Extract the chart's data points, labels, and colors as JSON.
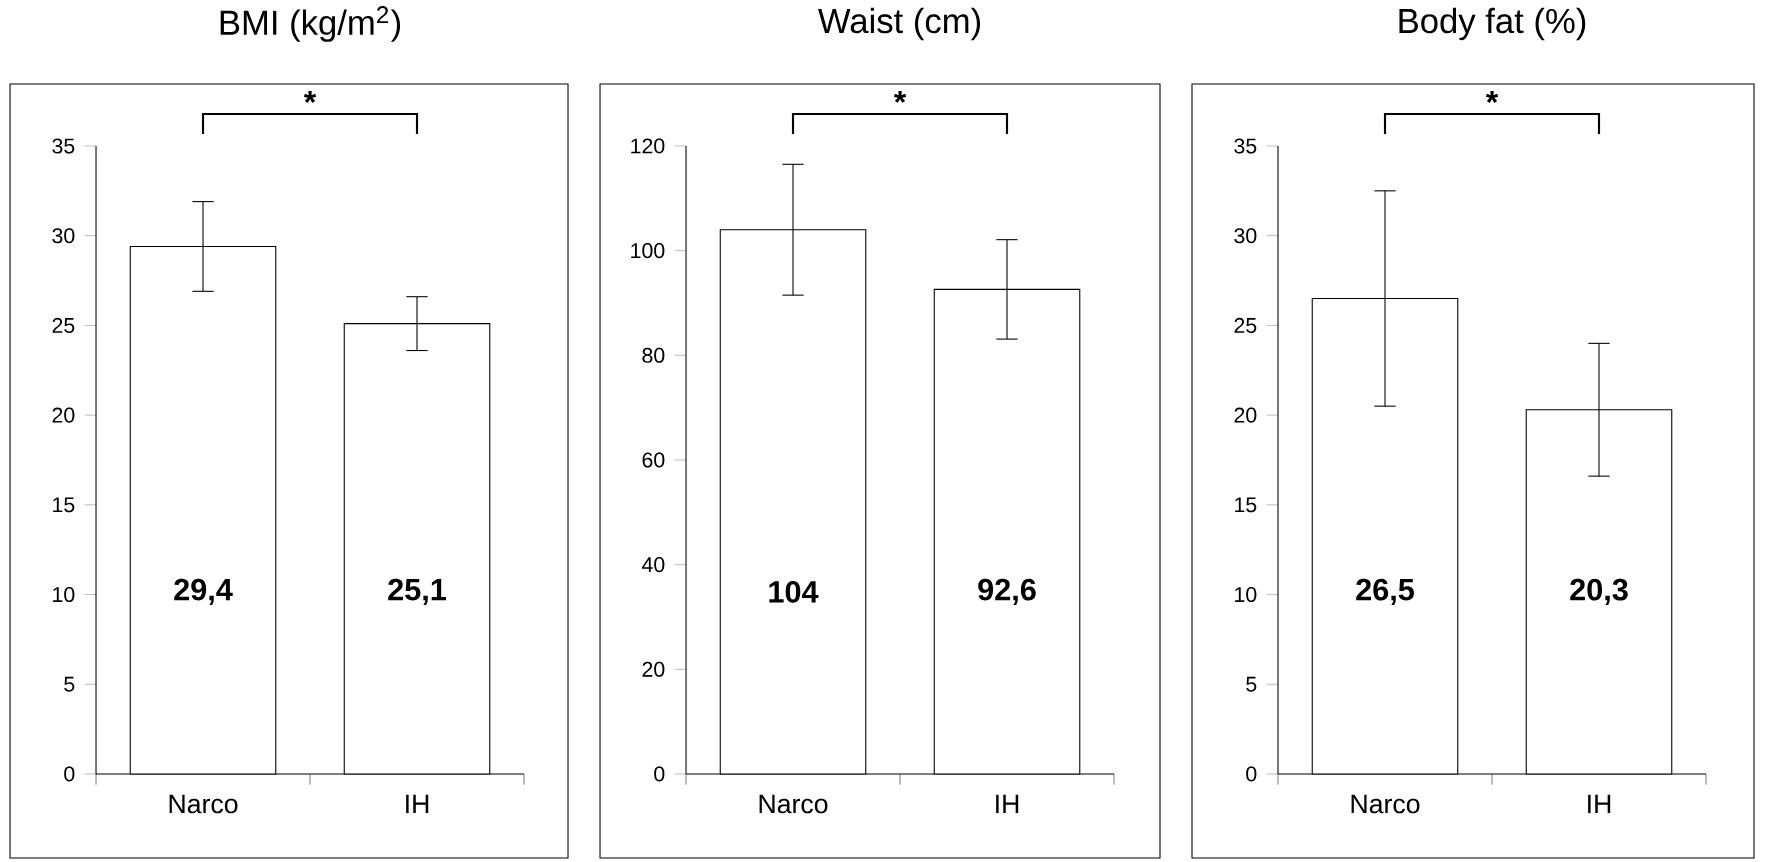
{
  "chart_data": [
    {
      "type": "bar",
      "title": "BMI (kg/m$^{2}$)",
      "categories": [
        "Narco",
        "IH"
      ],
      "values": [
        29.4,
        25.1
      ],
      "errors": [
        2.5,
        1.5
      ],
      "value_labels": [
        "29,4",
        "25,1"
      ],
      "color": "#ffffff",
      "ylim": [
        0,
        35
      ],
      "yticks": [
        0,
        5,
        10,
        15,
        20,
        25,
        30,
        35
      ],
      "annotations": [
        "*"
      ]
    },
    {
      "type": "bar",
      "title": "Waist  (cm)",
      "categories": [
        "Narco",
        "IH"
      ],
      "values": [
        104,
        92.6
      ],
      "errors": [
        12.5,
        9.5
      ],
      "value_labels": [
        "104",
        "92,6"
      ],
      "color": "#ffffff",
      "ylim": [
        0,
        120
      ],
      "yticks": [
        0,
        20,
        40,
        60,
        80,
        100,
        120
      ],
      "annotations": [
        "*"
      ]
    },
    {
      "type": "bar",
      "title": "Body fat (%)",
      "categories": [
        "Narco",
        "IH"
      ],
      "values": [
        26.5,
        20.3
      ],
      "errors": [
        6,
        3.7
      ],
      "value_labels": [
        "26,5",
        "20,3"
      ],
      "color": "#ffffff",
      "ylim": [
        0,
        35
      ],
      "yticks": [
        0,
        5,
        10,
        15,
        20,
        25,
        30,
        35
      ],
      "annotations": [
        "*"
      ]
    }
  ]
}
